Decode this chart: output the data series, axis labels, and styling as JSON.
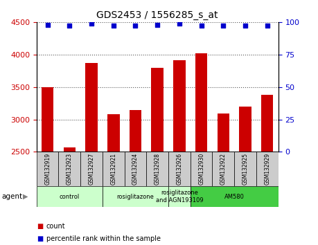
{
  "title": "GDS2453 / 1556285_s_at",
  "samples": [
    "GSM132919",
    "GSM132923",
    "GSM132927",
    "GSM132921",
    "GSM132924",
    "GSM132928",
    "GSM132926",
    "GSM132930",
    "GSM132922",
    "GSM132925",
    "GSM132929"
  ],
  "counts": [
    3500,
    2570,
    3870,
    3080,
    3140,
    3800,
    3910,
    4020,
    3090,
    3200,
    3380
  ],
  "percentiles": [
    98,
    97,
    99,
    97,
    97,
    98,
    99,
    97,
    97,
    97,
    97
  ],
  "ylim_left": [
    2500,
    4500
  ],
  "ylim_right": [
    0,
    100
  ],
  "yticks_left": [
    2500,
    3000,
    3500,
    4000,
    4500
  ],
  "yticks_right": [
    0,
    25,
    50,
    75,
    100
  ],
  "bar_color": "#cc0000",
  "dot_color": "#0000cc",
  "groups": [
    {
      "label": "control",
      "start": 0,
      "end": 3,
      "color": "#ccffcc"
    },
    {
      "label": "rosiglitazone",
      "start": 3,
      "end": 6,
      "color": "#ccffcc"
    },
    {
      "label": "rosiglitazone\nand AGN193109",
      "start": 6,
      "end": 7,
      "color": "#ccffcc"
    },
    {
      "label": "AM580",
      "start": 7,
      "end": 11,
      "color": "#44cc44"
    }
  ],
  "legend_count_color": "#cc0000",
  "legend_percentile_color": "#0000cc",
  "grid_color": "#555555",
  "sample_box_color": "#cccccc",
  "background_color": "#ffffff",
  "title_fontsize": 10,
  "tick_fontsize": 8,
  "bar_width": 0.55
}
